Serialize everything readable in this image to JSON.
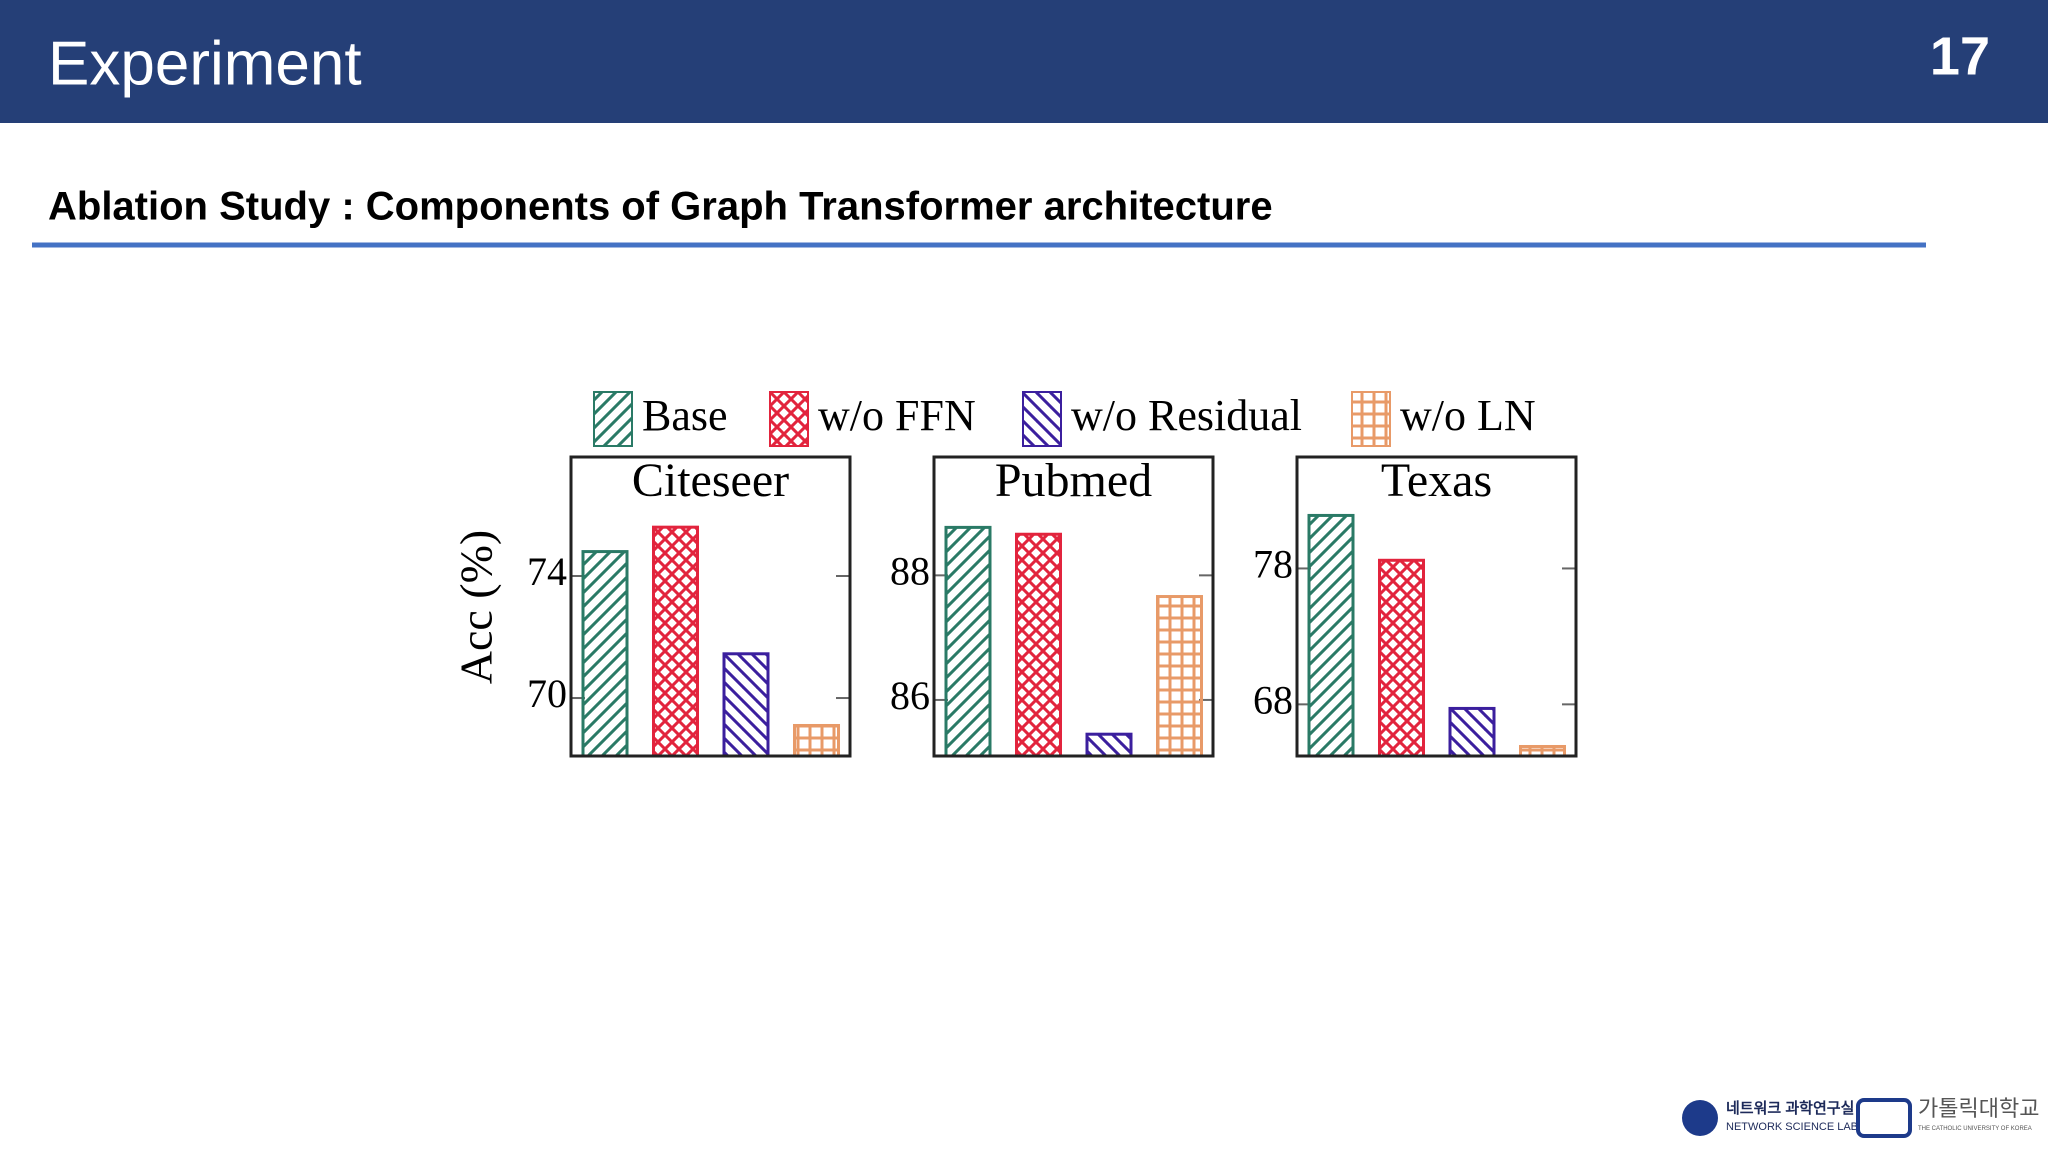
{
  "header": {
    "title": "Experiment",
    "page_number": "17"
  },
  "subtitle": "Ablation Study : Components of Graph Transformer architecture",
  "logos": [
    "네트워크 과학연구실",
    "NETWORK SCIENCE LAB",
    "가톨릭대학교",
    "THE CATHOLIC UNIVERSITY OF KOREA"
  ],
  "chart_data": {
    "type": "bar",
    "ylabel": "Acc (%)",
    "series": [
      {
        "name": "Base",
        "color": "#2a7a66",
        "pattern": "/"
      },
      {
        "name": "w/o FFN",
        "color": "#e2243d",
        "pattern": "x"
      },
      {
        "name": "w/o Residual",
        "color": "#3b1f9e",
        "pattern": "\\"
      },
      {
        "name": "w/o LN",
        "color": "#e89a68",
        "pattern": "+"
      }
    ],
    "panels": [
      {
        "title": "Citeseer",
        "ylim": [
          68.1,
          77.9
        ],
        "yticks": [
          70,
          74
        ],
        "values": [
          74.8,
          75.6,
          71.45,
          69.1
        ]
      },
      {
        "title": "Pubmed",
        "ylim": [
          85.1,
          89.9
        ],
        "yticks": [
          86,
          88
        ],
        "values": [
          88.77,
          88.66,
          85.45,
          87.66
        ]
      },
      {
        "title": "Texas",
        "ylim": [
          64.2,
          86.2
        ],
        "yticks": [
          68,
          78
        ],
        "values": [
          81.9,
          78.6,
          67.7,
          64.9
        ]
      }
    ]
  }
}
